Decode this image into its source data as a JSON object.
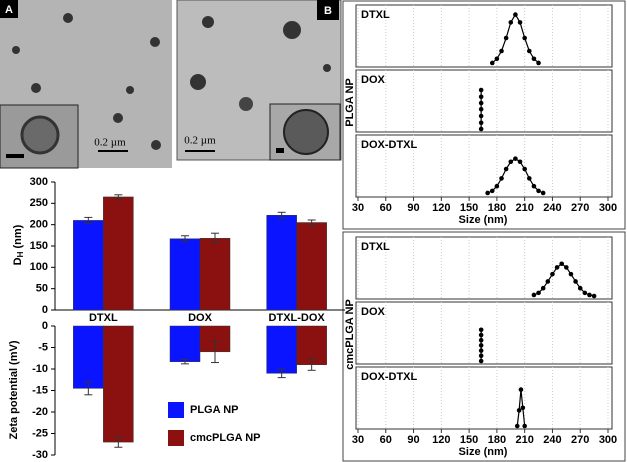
{
  "images": [
    {
      "label": "A",
      "scale": "0.2 µm"
    },
    {
      "label": "B",
      "scale": "0.2 µm"
    }
  ],
  "chart_data": [
    {
      "type": "bar",
      "ylabel": {
        "main": "D",
        "sub": "H",
        "unit": " (nm)"
      },
      "categories": [
        "DTXL",
        "DOX",
        "DTXL-DOX"
      ],
      "series": [
        {
          "color": "#0a14ff",
          "values": [
            210,
            167,
            222
          ],
          "errors": [
            7,
            7,
            7
          ]
        },
        {
          "color": "#8b1010",
          "values": [
            265,
            168,
            205
          ],
          "errors": [
            5,
            12,
            6
          ]
        }
      ],
      "ylim": [
        0,
        300
      ],
      "yticks": [
        0,
        50,
        100,
        150,
        200,
        250,
        300
      ]
    },
    {
      "type": "bar",
      "ylabel": "Zeta potential (mV)",
      "series": [
        {
          "name": "PLGA NP",
          "color": "#0a14ff",
          "values": [
            -14.5,
            -8.3,
            -11
          ],
          "errors": [
            1.5,
            0.5,
            1
          ]
        },
        {
          "name": "cmcPLGA NP",
          "color": "#8b1010",
          "values": [
            -27,
            -6,
            -9
          ],
          "errors": [
            1.2,
            2.5,
            1.3
          ]
        }
      ],
      "ylim": [
        -30,
        0
      ],
      "yticks": [
        -30,
        -25,
        -20,
        -15,
        -10,
        -5,
        0
      ]
    },
    {
      "type": "line",
      "group_label": "PLGA NP",
      "xlabel": "Size (nm)",
      "xlim": [
        30,
        300
      ],
      "xticks": [
        30,
        60,
        90,
        120,
        150,
        180,
        210,
        240,
        270,
        300
      ],
      "ylim": [
        0,
        100
      ],
      "panels": [
        {
          "name": "DTXL",
          "x": [
            175,
            180,
            185,
            190,
            195,
            200,
            205,
            210,
            215,
            220,
            225
          ],
          "values": [
            2,
            10,
            25,
            50,
            80,
            95,
            80,
            50,
            25,
            10,
            2
          ]
        },
        {
          "name": "DOX",
          "x": [
            163,
            163,
            163,
            163,
            163,
            163,
            163
          ],
          "values": [
            0,
            12,
            25,
            38,
            50,
            62,
            75
          ]
        },
        {
          "name": "DOX-DTXL",
          "x": [
            170,
            175,
            180,
            185,
            190,
            195,
            200,
            205,
            210,
            215,
            220,
            225,
            230
          ],
          "values": [
            2,
            6,
            15,
            30,
            48,
            62,
            68,
            62,
            48,
            30,
            15,
            6,
            2
          ]
        }
      ]
    },
    {
      "type": "line",
      "group_label": "cmcPLGA NP",
      "xlabel": "Size (nm)",
      "xlim": [
        30,
        300
      ],
      "xticks": [
        30,
        60,
        90,
        120,
        150,
        180,
        210,
        240,
        270,
        300
      ],
      "ylim": [
        0,
        100
      ],
      "panels": [
        {
          "name": "DTXL",
          "x": [
            220,
            225,
            230,
            235,
            240,
            245,
            250,
            255,
            260,
            265,
            270,
            275,
            280,
            285
          ],
          "values": [
            2,
            6,
            15,
            28,
            42,
            55,
            62,
            55,
            42,
            28,
            15,
            6,
            2,
            0
          ]
        },
        {
          "name": "DOX",
          "x": [
            163,
            163,
            163,
            163,
            163,
            163,
            163
          ],
          "values": [
            0,
            10,
            20,
            30,
            40,
            50,
            60
          ]
        },
        {
          "name": "DOX-DTXL",
          "x": [
            202,
            204,
            206,
            208,
            210
          ],
          "values": [
            0,
            30,
            70,
            35,
            0
          ]
        }
      ]
    }
  ]
}
